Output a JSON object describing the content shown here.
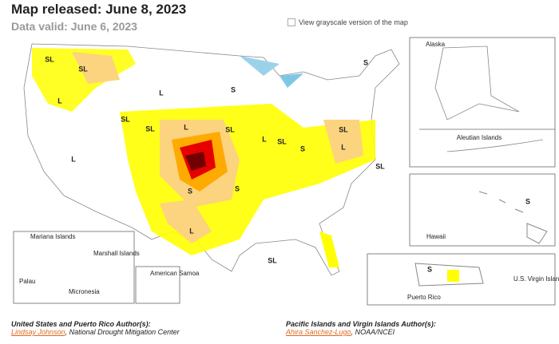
{
  "header": {
    "title": "Map released: June 8, 2023",
    "subtitle": "Data valid: June 6, 2023",
    "grayscale_option": "View grayscale version of the map"
  },
  "map": {
    "impact_labels": [
      "SL",
      "SL",
      "L",
      "SL",
      "SL",
      "S",
      "L",
      "L",
      "SL",
      "SL",
      "L",
      "SL",
      "S",
      "L",
      "SL",
      "S",
      "L",
      "S",
      "L",
      "SL",
      "S"
    ],
    "insets": {
      "alaska": "Alaska",
      "aleutian": "Aleutian Islands",
      "hawaii": "Hawaii",
      "hawaii_label": "S",
      "puerto_rico": "Puerto Rico",
      "puerto_rico_label": "S",
      "virgin_islands": "U.S. Virgin Islands",
      "american_samoa": "American Samoa",
      "mariana": "Mariana Islands",
      "marshall": "Marshall Islands",
      "palau": "Palau",
      "micronesia": "Micronesia"
    }
  },
  "authors": [
    {
      "heading": "United States and Puerto Rico Author(s):",
      "name": "Lindsay Johnson",
      "affiliation": ", National Drought Mitigation Center"
    },
    {
      "heading": "Pacific Islands and Virgin Islands Author(s):",
      "name": "Ahira Sanchez-Lugo",
      "affiliation": ", NOAA/NCEI"
    }
  ]
}
